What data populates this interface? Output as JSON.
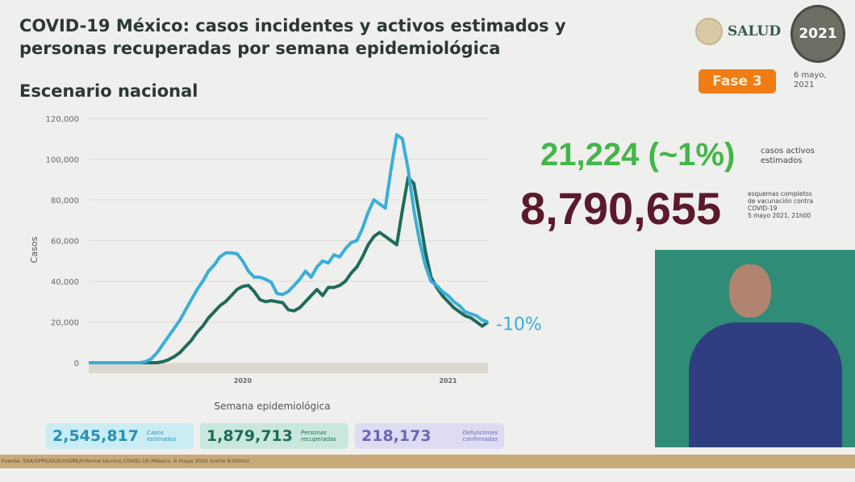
{
  "header": {
    "title_line1": "COVID-19 México: casos incidentes y activos estimados y",
    "title_line2": "personas recuperadas por semana epidemiológica",
    "subtitle": "Escenario nacional",
    "brand": "SALUD",
    "logo_year": "2021",
    "phase": "Fase 3",
    "date_line1": "6 mayo,",
    "date_line2": "2021"
  },
  "highlights": {
    "active_cases": "21,224 (~1%)",
    "active_label_1": "casos activos",
    "active_label_2": "estimados",
    "vaccination": "8,790,655",
    "vaccination_label_1": "esquemas completos",
    "vaccination_label_2": "de vacunación contra",
    "vaccination_label_3": "COVID-19",
    "vaccination_label_4": "5 mayo 2021, 21h00"
  },
  "stats": [
    {
      "value": "2,545,817",
      "label1": "Casos",
      "label2": "estimados"
    },
    {
      "value": "1,879,713",
      "label1": "Personas",
      "label2": "recuperadas"
    },
    {
      "value": "218,173",
      "label1": "Defunciones",
      "label2": "confirmadas"
    }
  ],
  "footer": "Fuente: SSA/SPPS/DGE/InDRE/Informe técnico.COVID-19 /México. 6 mayo 2020 (corte 9:00hrs)",
  "colors": {
    "incident": "#3aaed8",
    "active": "#1e6b5c",
    "active_cases": "#43b649",
    "vaccination": "#5a1a2c",
    "phase": "#ef7d14"
  },
  "chart_data": {
    "type": "line",
    "title": "",
    "xlabel": "Semana epidemiológica",
    "ylabel": "Casos",
    "ylim": [
      0,
      120000
    ],
    "yticks": [
      "0",
      "20,000",
      "40,000",
      "60,000",
      "80,000",
      "100,000",
      "120,000"
    ],
    "ytick_values": [
      0,
      20000,
      40000,
      60000,
      80000,
      100000,
      120000
    ],
    "year_labels": [
      {
        "label": "2020",
        "week": 27
      },
      {
        "label": "2021",
        "week": 63
      }
    ],
    "annotation": "-10%",
    "grid": true,
    "series": [
      {
        "name": "Casos incidentes estimados",
        "color": "#3aaed8",
        "values": [
          0,
          0,
          0,
          0,
          0,
          0,
          0,
          0,
          0,
          0,
          500,
          2000,
          5000,
          9000,
          13000,
          17000,
          21000,
          26000,
          31000,
          36000,
          40000,
          45000,
          48000,
          52000,
          54000,
          54000,
          53500,
          50000,
          45000,
          42000,
          42000,
          41000,
          39500,
          34000,
          33500,
          35000,
          38000,
          41000,
          45000,
          42000,
          47000,
          50000,
          49000,
          53000,
          52000,
          56000,
          59000,
          60000,
          66000,
          74000,
          80000,
          78000,
          76000,
          95000,
          112000,
          110000,
          95000,
          75000,
          60000,
          48000,
          40000,
          38000,
          35000,
          33000,
          30000,
          28000,
          25000,
          24000,
          23000,
          21000,
          20000
        ]
      },
      {
        "name": "Casos activos estimados",
        "color": "#1e6b5c",
        "values": [
          0,
          0,
          0,
          0,
          0,
          0,
          0,
          0,
          0,
          0,
          0,
          0,
          0,
          500,
          1500,
          3000,
          5000,
          8000,
          11000,
          15000,
          18000,
          22000,
          25000,
          28000,
          30000,
          33000,
          36000,
          37500,
          38000,
          35000,
          31000,
          30000,
          30500,
          30000,
          29500,
          26000,
          25500,
          27000,
          30000,
          33000,
          36000,
          33000,
          37000,
          37000,
          38000,
          40000,
          44000,
          47000,
          52000,
          58000,
          62000,
          64000,
          62000,
          60000,
          58000,
          75000,
          91000,
          88000,
          72000,
          55000,
          42000,
          37000,
          33000,
          30000,
          27000,
          25000,
          23000,
          22000,
          20000,
          18000,
          20000
        ]
      }
    ]
  }
}
